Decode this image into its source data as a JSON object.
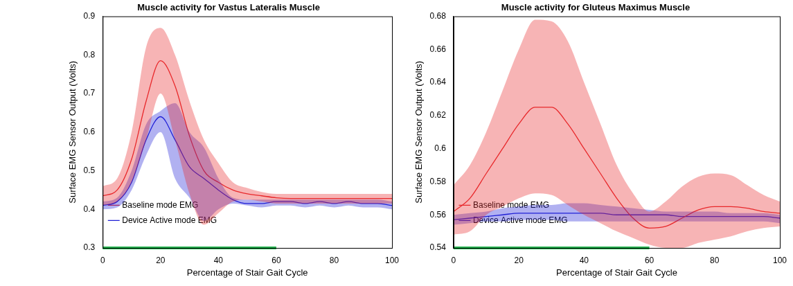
{
  "chart_data": [
    {
      "type": "line",
      "title": "Muscle activity for Vastus Lateralis Muscle",
      "x_label": "Percentage of Stair Gait Cycle",
      "y_label": "Surface EMG Sensor Output (Volts)",
      "x": [
        0,
        5,
        10,
        15,
        20,
        25,
        30,
        35,
        40,
        45,
        50,
        55,
        60,
        65,
        70,
        75,
        80,
        85,
        90,
        95,
        100
      ],
      "series": [
        {
          "name": "Baseline mode EMG",
          "color": "#e8282b",
          "values": [
            0.435,
            0.45,
            0.53,
            0.68,
            0.785,
            0.72,
            0.59,
            0.5,
            0.47,
            0.45,
            0.44,
            0.435,
            0.43,
            0.428,
            0.428,
            0.428,
            0.428,
            0.428,
            0.428,
            0.428,
            0.428
          ],
          "upper": [
            0.46,
            0.48,
            0.6,
            0.82,
            0.87,
            0.8,
            0.68,
            0.58,
            0.52,
            0.47,
            0.455,
            0.445,
            0.44,
            0.44,
            0.44,
            0.44,
            0.44,
            0.44,
            0.44,
            0.44,
            0.44
          ],
          "lower": [
            0.41,
            0.42,
            0.47,
            0.58,
            0.7,
            0.58,
            0.44,
            0.36,
            0.39,
            0.42,
            0.425,
            0.42,
            0.415,
            0.415,
            0.415,
            0.415,
            0.415,
            0.415,
            0.415,
            0.415,
            0.415
          ]
        },
        {
          "name": "Device Active mode EMG",
          "color": "#1f1fd6",
          "values": [
            0.41,
            0.42,
            0.47,
            0.58,
            0.64,
            0.58,
            0.51,
            0.48,
            0.45,
            0.425,
            0.415,
            0.415,
            0.42,
            0.42,
            0.415,
            0.42,
            0.415,
            0.42,
            0.415,
            0.415,
            0.41
          ],
          "upper": [
            0.42,
            0.43,
            0.5,
            0.62,
            0.655,
            0.675,
            0.6,
            0.56,
            0.48,
            0.43,
            0.425,
            0.425,
            0.425,
            0.425,
            0.425,
            0.425,
            0.425,
            0.425,
            0.425,
            0.425,
            0.42
          ],
          "lower": [
            0.4,
            0.405,
            0.45,
            0.54,
            0.6,
            0.48,
            0.43,
            0.37,
            0.4,
            0.415,
            0.41,
            0.405,
            0.41,
            0.41,
            0.405,
            0.41,
            0.405,
            0.41,
            0.405,
            0.405,
            0.4
          ]
        }
      ],
      "highlight": {
        "x": [
          0,
          60
        ],
        "color": "#22b14c"
      },
      "xlim": [
        0,
        100
      ],
      "xticks": [
        0,
        20,
        40,
        60,
        80,
        100
      ],
      "ylim": [
        0.3,
        0.9
      ],
      "yticks": [
        0.3,
        0.4,
        0.5,
        0.6,
        0.7,
        0.8,
        0.9
      ],
      "grid": false,
      "legend": "upper right"
    },
    {
      "type": "line",
      "title": "Muscle activity for Gluteus Maximus Muscle",
      "x_label": "Percentage of Stair Gait Cycle",
      "y_label": "Surface EMG Sensor Output (Volts)",
      "x": [
        0,
        5,
        10,
        15,
        20,
        25,
        30,
        35,
        40,
        45,
        50,
        55,
        60,
        65,
        70,
        75,
        80,
        85,
        90,
        95,
        100
      ],
      "series": [
        {
          "name": "Baseline mode EMG",
          "color": "#e8282b",
          "values": [
            0.562,
            0.57,
            0.585,
            0.6,
            0.615,
            0.625,
            0.625,
            0.615,
            0.6,
            0.585,
            0.57,
            0.558,
            0.552,
            0.553,
            0.558,
            0.563,
            0.565,
            0.565,
            0.564,
            0.562,
            0.561
          ],
          "upper": [
            0.578,
            0.59,
            0.61,
            0.635,
            0.66,
            0.678,
            0.677,
            0.665,
            0.64,
            0.615,
            0.59,
            0.573,
            0.562,
            0.568,
            0.577,
            0.583,
            0.585,
            0.584,
            0.578,
            0.572,
            0.568
          ],
          "lower": [
            0.548,
            0.55,
            0.56,
            0.565,
            0.57,
            0.573,
            0.572,
            0.566,
            0.56,
            0.555,
            0.55,
            0.546,
            0.542,
            0.54,
            0.54,
            0.543,
            0.545,
            0.547,
            0.55,
            0.552,
            0.553
          ]
        },
        {
          "name": "Device Active mode EMG",
          "color": "#1f1fd6",
          "values": [
            0.557,
            0.558,
            0.559,
            0.56,
            0.561,
            0.561,
            0.561,
            0.561,
            0.561,
            0.561,
            0.56,
            0.56,
            0.56,
            0.56,
            0.559,
            0.559,
            0.559,
            0.559,
            0.559,
            0.559,
            0.558
          ],
          "upper": [
            0.56,
            0.561,
            0.562,
            0.564,
            0.565,
            0.566,
            0.566,
            0.567,
            0.567,
            0.566,
            0.565,
            0.564,
            0.563,
            0.562,
            0.562,
            0.562,
            0.562,
            0.561,
            0.561,
            0.561,
            0.56
          ],
          "lower": [
            0.554,
            0.555,
            0.556,
            0.556,
            0.557,
            0.557,
            0.557,
            0.556,
            0.556,
            0.556,
            0.556,
            0.556,
            0.556,
            0.556,
            0.556,
            0.556,
            0.556,
            0.556,
            0.556,
            0.556,
            0.555
          ]
        }
      ],
      "highlight": {
        "x": [
          0,
          60
        ],
        "color": "#22b14c"
      },
      "xlim": [
        0,
        100
      ],
      "xticks": [
        0,
        20,
        40,
        60,
        80,
        100
      ],
      "ylim": [
        0.54,
        0.68
      ],
      "yticks": [
        0.54,
        0.56,
        0.58,
        0.6,
        0.62,
        0.64,
        0.66,
        0.68
      ],
      "grid": false,
      "legend": "upper right"
    }
  ]
}
